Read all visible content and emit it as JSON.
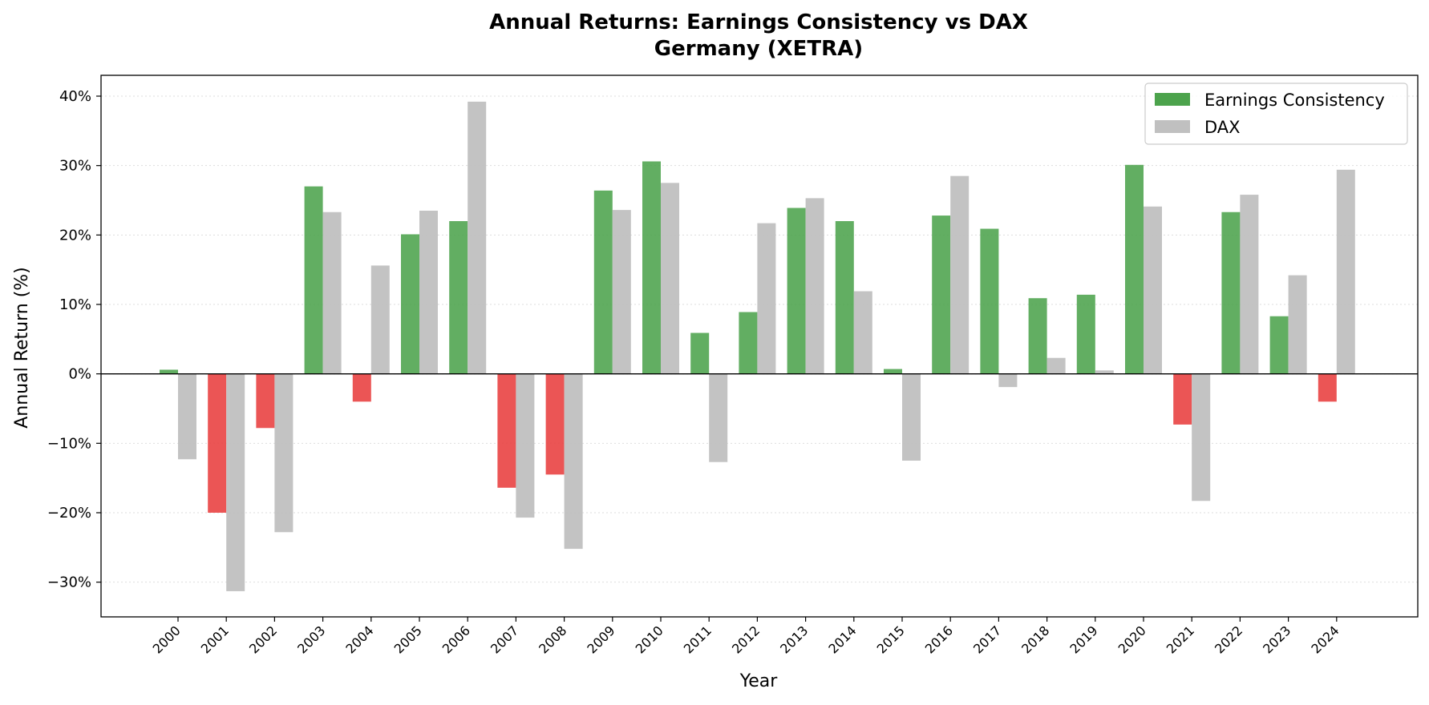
{
  "chart_data": {
    "type": "bar",
    "title_line1": "Annual Returns: Earnings Consistency vs DAX",
    "title_line2": "Germany (XETRA)",
    "xlabel": "Year",
    "ylabel": "Annual Return (%)",
    "ylim": [
      -35,
      43
    ],
    "yticks": [
      -30,
      -20,
      -10,
      0,
      10,
      20,
      30,
      40
    ],
    "ytick_labels": [
      "−30%",
      "−20%",
      "−10%",
      "0%",
      "10%",
      "20%",
      "30%",
      "40%"
    ],
    "grid": "horizontal dotted",
    "legend_position": "top-right",
    "categories": [
      "2000",
      "2001",
      "2002",
      "2003",
      "2004",
      "2005",
      "2006",
      "2007",
      "2008",
      "2009",
      "2010",
      "2011",
      "2012",
      "2013",
      "2014",
      "2015",
      "2016",
      "2017",
      "2018",
      "2019",
      "2020",
      "2021",
      "2022",
      "2023",
      "2024"
    ],
    "series": [
      {
        "name": "Earnings Consistency",
        "values": [
          0.6,
          -20.0,
          -7.8,
          27.0,
          -4.0,
          20.1,
          22.0,
          -16.4,
          -14.5,
          26.4,
          30.6,
          5.9,
          8.9,
          23.9,
          22.0,
          0.7,
          22.8,
          20.9,
          10.9,
          11.4,
          30.1,
          -7.3,
          23.3,
          8.3,
          -4.0
        ],
        "color_positive": "#4ca34c",
        "color_negative": "#e83e3e"
      },
      {
        "name": "DAX",
        "values": [
          -12.3,
          -31.3,
          -22.8,
          23.3,
          15.6,
          23.5,
          39.2,
          -20.7,
          -25.2,
          23.6,
          27.5,
          -12.7,
          21.7,
          25.3,
          11.9,
          -12.5,
          28.5,
          -1.9,
          2.3,
          0.5,
          24.1,
          -18.3,
          25.8,
          14.2,
          29.4
        ],
        "color": "#c0c0c0"
      }
    ]
  }
}
